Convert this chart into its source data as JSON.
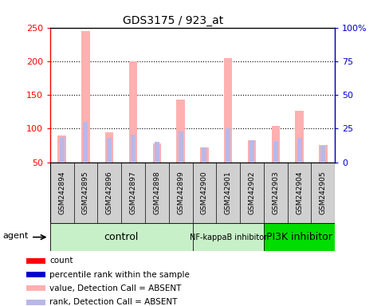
{
  "title": "GDS3175 / 923_at",
  "samples": [
    "GSM242894",
    "GSM242895",
    "GSM242896",
    "GSM242897",
    "GSM242898",
    "GSM242899",
    "GSM242900",
    "GSM242901",
    "GSM242902",
    "GSM242903",
    "GSM242904",
    "GSM242905"
  ],
  "value_absent": [
    90,
    245,
    95,
    200,
    78,
    143,
    72,
    205,
    83,
    104,
    126,
    75
  ],
  "rank_absent": [
    87,
    110,
    86,
    91,
    80,
    96,
    72,
    100,
    82,
    81,
    86,
    74
  ],
  "ylim_left": [
    50,
    250
  ],
  "ylim_right": [
    0,
    100
  ],
  "yticks_left": [
    50,
    100,
    150,
    200,
    250
  ],
  "yticks_right": [
    0,
    25,
    50,
    75,
    100
  ],
  "ytick_labels_right": [
    "0",
    "25",
    "50",
    "75",
    "100%"
  ],
  "hlines": [
    100,
    150,
    200
  ],
  "groups": [
    {
      "label": "control",
      "start": 0,
      "end": 5,
      "color": "#c8f0c8",
      "fontsize": 9
    },
    {
      "label": "NF-kappaB inhibitor",
      "start": 6,
      "end": 8,
      "color": "#c8f0c8",
      "fontsize": 7
    },
    {
      "label": "PI3K inhibitor",
      "start": 9,
      "end": 11,
      "color": "#00dd00",
      "fontsize": 9
    }
  ],
  "color_value_absent": "#ffb0b0",
  "color_rank_absent": "#b8b8e8",
  "color_count": "#ff0000",
  "color_rank": "#0000cc",
  "bar_width": 0.35,
  "rank_bar_width": 0.2,
  "bg_color": "#ffffff",
  "tick_color_left": "#ff0000",
  "tick_color_right": "#0000cc",
  "sample_box_color": "#d0d0d0",
  "legend_items": [
    {
      "color": "#ff0000",
      "label": "count"
    },
    {
      "color": "#0000cc",
      "label": "percentile rank within the sample"
    },
    {
      "color": "#ffb0b0",
      "label": "value, Detection Call = ABSENT"
    },
    {
      "color": "#b8b8e8",
      "label": "rank, Detection Call = ABSENT"
    }
  ],
  "figsize": [
    4.83,
    3.84
  ],
  "dpi": 100
}
